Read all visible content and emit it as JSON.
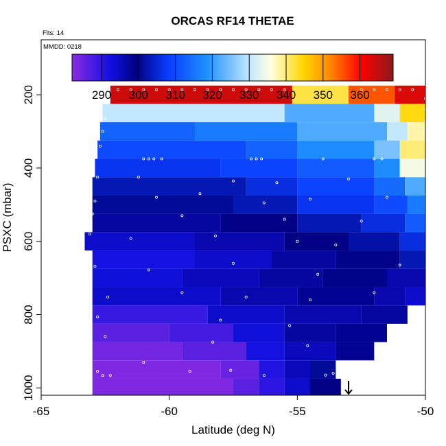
{
  "chart_data": {
    "type": "heatmap",
    "title": "ORCAS RF14 THETAE",
    "flights_label": "Flts: 14",
    "date_label": "MMDD: 0218",
    "xlabel": "Latitude (deg N)",
    "ylabel": "PSXC (mbar)",
    "xlim": [
      -65,
      -50
    ],
    "ylim": [
      1020,
      50
    ],
    "x_ticks": [
      -65,
      -60,
      -55,
      -50
    ],
    "x_tick_labels": [
      "-65",
      "-60",
      "-55",
      "-50"
    ],
    "y_ticks": [
      200,
      400,
      600,
      800,
      1000
    ],
    "y_tick_labels": [
      "200",
      "400",
      "600",
      "800",
      "1000"
    ],
    "colorbar": {
      "range": [
        282,
        369
      ],
      "ticks": [
        290,
        300,
        310,
        320,
        330,
        340,
        350,
        360
      ],
      "tick_labels": [
        "290",
        "300",
        "310",
        "320",
        "330",
        "340",
        "350",
        "360"
      ]
    },
    "grid": false,
    "pressure_levels": [
      200,
      250,
      300,
      350,
      400,
      450,
      500,
      550,
      600,
      650,
      700,
      750,
      800,
      850,
      900,
      950,
      1000
    ],
    "rows": [
      {
        "p": 200,
        "segs": [
          [
            -62.3,
            -55.2,
            364
          ],
          [
            -55.2,
            -53.0,
            342
          ],
          [
            -53.0,
            -51.2,
            355
          ],
          [
            -51.2,
            -50.0,
            363
          ]
        ]
      },
      {
        "p": 250,
        "segs": [
          [
            -62.6,
            -55.5,
            330
          ],
          [
            -55.5,
            -52.0,
            322
          ],
          [
            -52.0,
            -51.0,
            333
          ],
          [
            -51.0,
            -50.0,
            344
          ]
        ]
      },
      {
        "p": 300,
        "segs": [
          [
            -62.7,
            -59.0,
            313
          ],
          [
            -59.0,
            -55.0,
            316
          ],
          [
            -55.0,
            -51.5,
            322
          ],
          [
            -51.5,
            -50.7,
            330
          ],
          [
            -50.7,
            -50.0,
            338
          ]
        ]
      },
      {
        "p": 350,
        "segs": [
          [
            -62.8,
            -57.0,
            310
          ],
          [
            -57.0,
            -55.0,
            313
          ],
          [
            -55.0,
            -52.0,
            318
          ],
          [
            -52.0,
            -51.0,
            325
          ],
          [
            -51.0,
            -50.0,
            340
          ]
        ]
      },
      {
        "p": 400,
        "segs": [
          [
            -62.9,
            -58.0,
            307
          ],
          [
            -58.0,
            -55.0,
            309
          ],
          [
            -55.0,
            -52.0,
            312
          ],
          [
            -52.0,
            -51.0,
            318
          ],
          [
            -51.0,
            -50.0,
            335
          ]
        ]
      },
      {
        "p": 450,
        "segs": [
          [
            -63.0,
            -57.0,
            303
          ],
          [
            -57.0,
            -55.0,
            306
          ],
          [
            -55.0,
            -52.0,
            309
          ],
          [
            -52.0,
            -50.8,
            314
          ],
          [
            -50.8,
            -50.0,
            322
          ]
        ]
      },
      {
        "p": 500,
        "segs": [
          [
            -63.0,
            -57.5,
            301
          ],
          [
            -57.5,
            -55.0,
            303
          ],
          [
            -55.0,
            -52.0,
            307
          ],
          [
            -52.0,
            -50.7,
            310
          ],
          [
            -50.7,
            -50.0,
            316
          ]
        ]
      },
      {
        "p": 550,
        "segs": [
          [
            -63.0,
            -58.0,
            297
          ],
          [
            -58.0,
            -55.0,
            299
          ],
          [
            -55.0,
            -52.5,
            303
          ],
          [
            -52.5,
            -50.8,
            306
          ],
          [
            -50.8,
            -50.0,
            312
          ]
        ]
      },
      {
        "p": 600,
        "segs": [
          [
            -63.3,
            -59.0,
            294
          ],
          [
            -59.0,
            -55.5,
            296
          ],
          [
            -55.5,
            -53.0,
            299
          ],
          [
            -53.0,
            -51.0,
            302
          ],
          [
            -51.0,
            -50.0,
            306
          ]
        ]
      },
      {
        "p": 650,
        "segs": [
          [
            -63.0,
            -59.0,
            292
          ],
          [
            -59.0,
            -56.0,
            294
          ],
          [
            -56.0,
            -53.5,
            297
          ],
          [
            -53.5,
            -51.0,
            300
          ],
          [
            -51.0,
            -50.0,
            303
          ]
        ]
      },
      {
        "p": 700,
        "segs": [
          [
            -63.0,
            -59.5,
            293
          ],
          [
            -59.5,
            -56.5,
            295
          ],
          [
            -56.5,
            -54.0,
            297
          ],
          [
            -54.0,
            -51.5,
            300
          ],
          [
            -51.5,
            -50.0,
            296
          ]
        ]
      },
      {
        "p": 750,
        "segs": [
          [
            -63.0,
            -58.0,
            294
          ],
          [
            -58.0,
            -55.0,
            296
          ],
          [
            -55.0,
            -52.0,
            298
          ],
          [
            -52.0,
            -50.8,
            296
          ],
          [
            -50.8,
            -50.0,
            294
          ]
        ]
      },
      {
        "p": 800,
        "segs": [
          [
            -63.0,
            -58.5,
            289
          ],
          [
            -58.5,
            -55.5,
            294
          ],
          [
            -55.5,
            -52.5,
            296
          ],
          [
            -52.5,
            -50.7,
            297
          ]
        ]
      },
      {
        "p": 850,
        "segs": [
          [
            -63.0,
            -60.0,
            286
          ],
          [
            -60.0,
            -57.5,
            288
          ],
          [
            -57.5,
            -55.5,
            293
          ],
          [
            -55.5,
            -53.5,
            297
          ],
          [
            -53.5,
            -51.5,
            298
          ]
        ]
      },
      {
        "p": 900,
        "segs": [
          [
            -63.0,
            -59.5,
            284
          ],
          [
            -59.5,
            -57.0,
            286
          ],
          [
            -57.0,
            -55.5,
            292
          ],
          [
            -55.5,
            -53.5,
            295
          ],
          [
            -53.5,
            -52.0,
            298
          ]
        ]
      },
      {
        "p": 950,
        "segs": [
          [
            -63.0,
            -58.0,
            283
          ],
          [
            -58.0,
            -56.5,
            285
          ],
          [
            -56.5,
            -55.5,
            291
          ],
          [
            -55.5,
            -54.5,
            295
          ],
          [
            -54.5,
            -53.5,
            301
          ]
        ]
      },
      {
        "p": 1000,
        "segs": [
          [
            -63.0,
            -57.5,
            283
          ],
          [
            -57.5,
            -56.5,
            286
          ],
          [
            -56.5,
            -55.5,
            290
          ],
          [
            -55.5,
            -54.5,
            294
          ],
          [
            -54.5,
            -53.3,
            299
          ]
        ]
      }
    ],
    "sample_points": [
      [
        -62.0,
        186
      ],
      [
        -61.5,
        186
      ],
      [
        -61.0,
        186
      ],
      [
        -60.5,
        186
      ],
      [
        -60.0,
        186
      ],
      [
        -59.5,
        186
      ],
      [
        -59.0,
        186
      ],
      [
        -58.5,
        186
      ],
      [
        -58.0,
        186
      ],
      [
        -57.5,
        186
      ],
      [
        -57.0,
        186
      ],
      [
        -56.5,
        186
      ],
      [
        -56.0,
        186
      ],
      [
        -55.5,
        186
      ],
      [
        -52.5,
        186
      ],
      [
        -52.0,
        186
      ],
      [
        -51.5,
        186
      ],
      [
        -51.0,
        186
      ],
      [
        -50.5,
        186
      ],
      [
        -50.0,
        210
      ],
      [
        -50.0,
        240
      ],
      [
        -50.0,
        270
      ],
      [
        -50.0,
        300
      ],
      [
        -62.5,
        265
      ],
      [
        -62.6,
        300
      ],
      [
        -62.7,
        340
      ],
      [
        -61.0,
        375
      ],
      [
        -60.8,
        375
      ],
      [
        -60.6,
        375
      ],
      [
        -60.3,
        375
      ],
      [
        -56.8,
        375
      ],
      [
        -56.6,
        375
      ],
      [
        -56.4,
        375
      ],
      [
        -54.0,
        375
      ],
      [
        -52.0,
        375
      ],
      [
        -51.7,
        375
      ],
      [
        -62.8,
        425
      ],
      [
        -61.2,
        425
      ],
      [
        -57.5,
        435
      ],
      [
        -55.8,
        440
      ],
      [
        -53.0,
        430
      ],
      [
        -62.9,
        490
      ],
      [
        -60.5,
        480
      ],
      [
        -58.8,
        470
      ],
      [
        -56.3,
        495
      ],
      [
        -54.5,
        485
      ],
      [
        -51.5,
        480
      ],
      [
        -63.0,
        525
      ],
      [
        -59.5,
        530
      ],
      [
        -55.5,
        540
      ],
      [
        -52.5,
        545
      ],
      [
        -63.1,
        580
      ],
      [
        -61.5,
        592
      ],
      [
        -58.2,
        585
      ],
      [
        -55.0,
        600
      ],
      [
        -53.5,
        610
      ],
      [
        -62.9,
        668
      ],
      [
        -60.8,
        678
      ],
      [
        -57.5,
        660
      ],
      [
        -54.2,
        690
      ],
      [
        -51.0,
        665
      ],
      [
        -62.4,
        752
      ],
      [
        -59.5,
        740
      ],
      [
        -57.0,
        752
      ],
      [
        -54.5,
        760
      ],
      [
        -52.0,
        740
      ],
      [
        -62.8,
        806
      ],
      [
        -58.0,
        815
      ],
      [
        -55.3,
        830
      ],
      [
        -62.5,
        860
      ],
      [
        -58.3,
        875
      ],
      [
        -54.6,
        885
      ],
      [
        -62.8,
        955
      ],
      [
        -62.6,
        966
      ],
      [
        -62.3,
        966
      ],
      [
        -61.0,
        930
      ],
      [
        -59.2,
        955
      ],
      [
        -57.6,
        952
      ],
      [
        -56.3,
        966
      ],
      [
        -53.9,
        965
      ],
      [
        -53.6,
        960
      ],
      [
        -53.3,
        950
      ]
    ],
    "marker": {
      "lat": -53.0,
      "direction": "down"
    }
  }
}
